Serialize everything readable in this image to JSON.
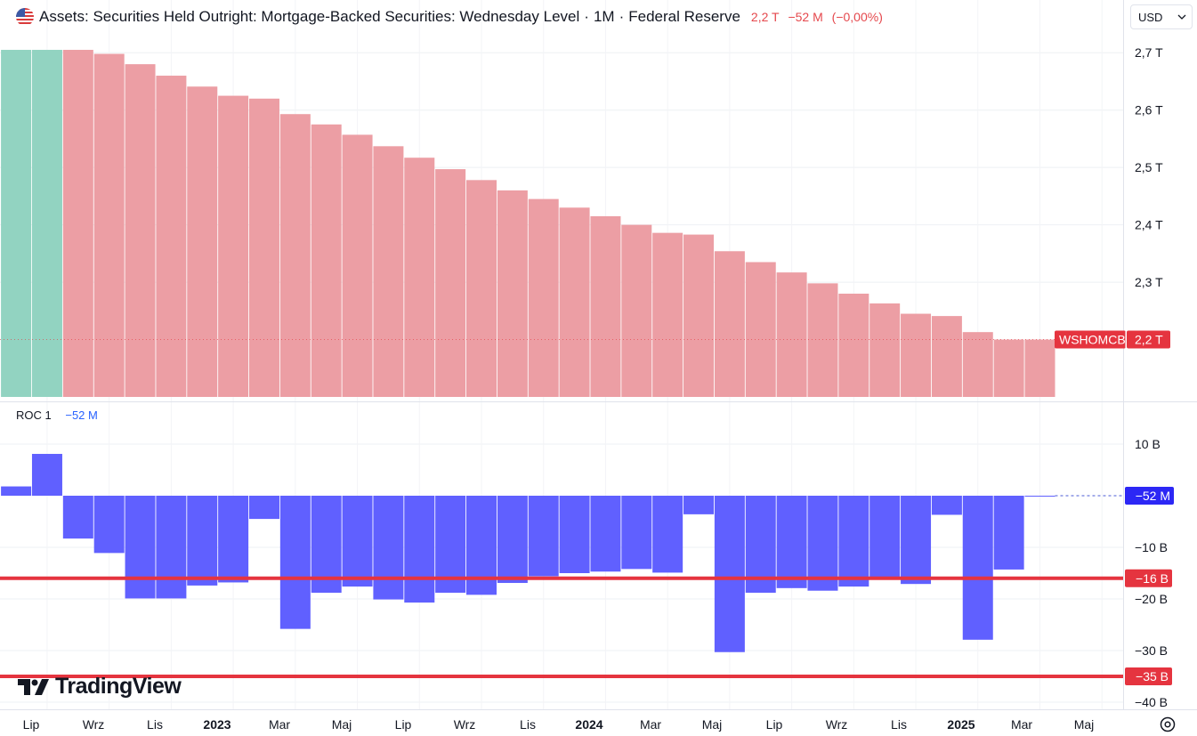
{
  "header": {
    "title": "Assets: Securities Held Outright: Mortgage-Backed Securities: Wednesday Level",
    "interval": "1M",
    "source": "Federal Reserve",
    "value": "2,2 T",
    "change": "−52 M",
    "change_pct": "(−0,00%)",
    "currency": "USD",
    "flag_icon": "us-flag-icon"
  },
  "main_pane": {
    "price_label": {
      "ticker": "WSHOMCB",
      "value": "2,2 T"
    },
    "axis_ticks": [
      "2,7 T",
      "2,6 T",
      "2,5 T",
      "2,4 T",
      "2,3 T"
    ],
    "colors": {
      "up": "#92d3c1",
      "down": "#ec9ea4",
      "badge": "#e5343f"
    }
  },
  "roc_pane": {
    "name": "ROC 1",
    "value": "−52 M",
    "axis_ticks": [
      "10 B",
      "−10 B",
      "−20 B",
      "−30 B",
      "−40 B"
    ],
    "current_badge": "−52 M",
    "line_badges": [
      "−16 B",
      "−35 B"
    ],
    "colors": {
      "bar": "#6060ff",
      "line": "#e5343f"
    }
  },
  "x_axis": {
    "labels": [
      "Lip",
      "Wrz",
      "Lis",
      "2023",
      "Mar",
      "Maj",
      "Lip",
      "Wrz",
      "Lis",
      "2024",
      "Mar",
      "Maj",
      "Lip",
      "Wrz",
      "Lis",
      "2025",
      "Mar",
      "Maj"
    ]
  },
  "branding": {
    "logo_text": "TradingView"
  },
  "chart_data": [
    {
      "type": "bar",
      "title": "Assets: Securities Held Outright: Mortgage-Backed Securities: Wednesday Level",
      "unit": "trillion USD",
      "categories": [
        "2022-06",
        "2022-07",
        "2022-08",
        "2022-09",
        "2022-10",
        "2022-11",
        "2022-12",
        "2023-01",
        "2023-02",
        "2023-03",
        "2023-04",
        "2023-05",
        "2023-06",
        "2023-07",
        "2023-08",
        "2023-09",
        "2023-10",
        "2023-11",
        "2023-12",
        "2024-01",
        "2024-02",
        "2024-03",
        "2024-04",
        "2024-05",
        "2024-06",
        "2024-07",
        "2024-08",
        "2024-09",
        "2024-10",
        "2024-11",
        "2024-12",
        "2025-01",
        "2025-02",
        "2025-03"
      ],
      "values": [
        2.71,
        2.718,
        2.708,
        2.698,
        2.68,
        2.66,
        2.641,
        2.625,
        2.62,
        2.593,
        2.575,
        2.557,
        2.537,
        2.517,
        2.497,
        2.478,
        2.46,
        2.445,
        2.43,
        2.415,
        2.4,
        2.386,
        2.383,
        2.354,
        2.335,
        2.317,
        2.298,
        2.28,
        2.263,
        2.245,
        2.241,
        2.213,
        2.2,
        2.2
      ],
      "colors": [
        "up",
        "up",
        "down",
        "down",
        "down",
        "down",
        "down",
        "down",
        "down",
        "down",
        "down",
        "down",
        "down",
        "down",
        "down",
        "down",
        "down",
        "down",
        "down",
        "down",
        "down",
        "down",
        "down",
        "down",
        "down",
        "down",
        "down",
        "down",
        "down",
        "down",
        "down",
        "down",
        "down",
        "down"
      ],
      "ylim": [
        2.1,
        2.705
      ]
    },
    {
      "type": "bar",
      "title": "ROC 1",
      "unit": "billion USD",
      "categories": [
        "2022-06",
        "2022-07",
        "2022-08",
        "2022-09",
        "2022-10",
        "2022-11",
        "2022-12",
        "2023-01",
        "2023-02",
        "2023-03",
        "2023-04",
        "2023-05",
        "2023-06",
        "2023-07",
        "2023-08",
        "2023-09",
        "2023-10",
        "2023-11",
        "2023-12",
        "2024-01",
        "2024-02",
        "2024-03",
        "2024-04",
        "2024-05",
        "2024-06",
        "2024-07",
        "2024-08",
        "2024-09",
        "2024-10",
        "2024-11",
        "2024-12",
        "2025-01",
        "2025-02",
        "2025-03"
      ],
      "values": [
        1.8,
        8.1,
        -8.3,
        -11.1,
        -19.9,
        -19.9,
        -17.4,
        -16.8,
        -4.5,
        -25.8,
        -18.8,
        -17.6,
        -20.1,
        -20.7,
        -18.8,
        -19.2,
        -16.9,
        -15.6,
        -15.0,
        -14.7,
        -14.2,
        -14.9,
        -3.6,
        -30.3,
        -18.8,
        -17.9,
        -18.4,
        -17.6,
        -16.0,
        -17.1,
        -3.7,
        -27.9,
        -14.3,
        -0.052
      ],
      "reference_lines": [
        -16,
        -35
      ],
      "ylim": [
        -40,
        10
      ]
    }
  ]
}
